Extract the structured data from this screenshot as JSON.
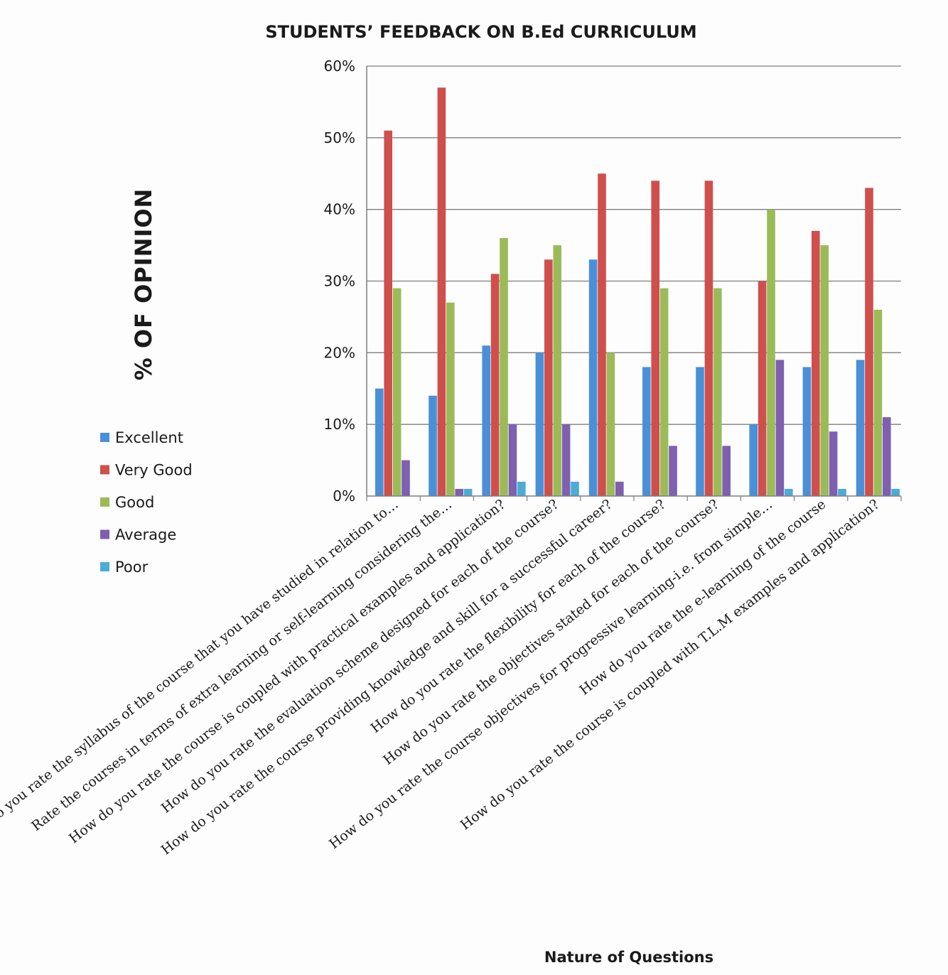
{
  "chart_data": {
    "type": "bar",
    "title": "STUDENTS’ FEEDBACK ON B.Ed CURRICULUM",
    "ylabel": "% OF OPINION",
    "xlabel": "Nature of Questions",
    "ylim": [
      0,
      60
    ],
    "yticks": [
      "0%",
      "10%",
      "20%",
      "30%",
      "40%",
      "50%",
      "60%"
    ],
    "grid": true,
    "legend_position": "left",
    "categories": [
      "How do you rate the syllabus of the course that you have studied in relation to…",
      "Rate the courses in terms of extra learning or self-learning considering the…",
      "How do you rate the course is coupled with practical examples and application?",
      "How do you rate the evaluation scheme designed for each of the course?",
      "How do you rate the course providing knowledge and skill for a successful career?",
      "How do you rate the flexibility for each of the course?",
      "How do you rate the objectives stated for each of the course?",
      "How do you rate the course objectives for progressive learning-i.e. from simple…",
      "How do you rate the e-learning  of the course",
      "How do you rate the course is coupled with T.L.M examples and application?"
    ],
    "series": [
      {
        "name": "Excellent",
        "color": "#4a90d9",
        "values": [
          15,
          14,
          21,
          20,
          33,
          18,
          18,
          10,
          18,
          19
        ]
      },
      {
        "name": "Very Good",
        "color": "#cf4f4c",
        "values": [
          51,
          57,
          31,
          33,
          45,
          44,
          44,
          30,
          37,
          43
        ]
      },
      {
        "name": "Good",
        "color": "#9bbb59",
        "values": [
          29,
          27,
          36,
          35,
          20,
          29,
          29,
          40,
          35,
          26
        ]
      },
      {
        "name": "Average",
        "color": "#7e5fb0",
        "values": [
          5,
          1,
          10,
          10,
          2,
          7,
          7,
          19,
          9,
          11
        ]
      },
      {
        "name": "Poor",
        "color": "#4bacd6",
        "values": [
          0,
          1,
          2,
          2,
          0,
          0,
          0,
          1,
          1,
          1
        ]
      }
    ]
  }
}
